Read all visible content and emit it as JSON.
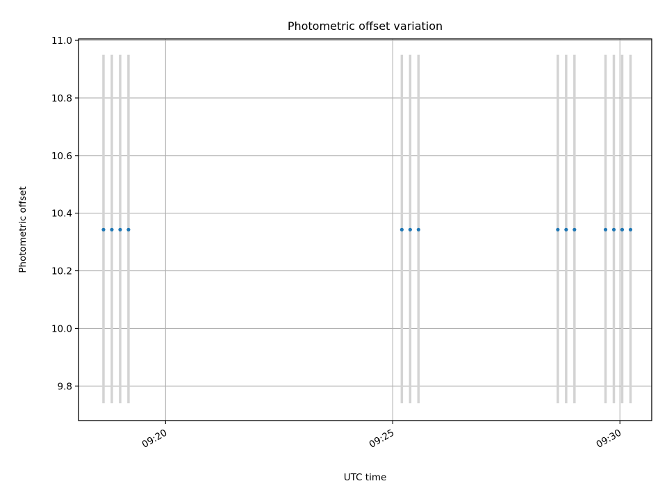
{
  "chart_data": {
    "type": "scatter",
    "title": "Photometric offset variation",
    "xlabel": "UTC time",
    "ylabel": "Photometric offset",
    "xlim": [
      "09:18:05",
      "09:30:42"
    ],
    "ylim": [
      9.68,
      11.005
    ],
    "x_ticks": [
      "09:20",
      "09:25",
      "09:30"
    ],
    "y_ticks": [
      "9.8",
      "10.0",
      "10.2",
      "10.4",
      "10.6",
      "10.8",
      "11.0"
    ],
    "grid": true,
    "series": [
      {
        "marker": "dot",
        "color": "#1f77b4",
        "points": [
          {
            "x": "09:18:38",
            "y": 10.343,
            "ylow": 9.74,
            "yhigh": 10.95
          },
          {
            "x": "09:18:49",
            "y": 10.343,
            "ylow": 9.74,
            "yhigh": 10.95
          },
          {
            "x": "09:19:00",
            "y": 10.343,
            "ylow": 9.74,
            "yhigh": 10.95
          },
          {
            "x": "09:19:11",
            "y": 10.343,
            "ylow": 9.74,
            "yhigh": 10.95
          },
          {
            "x": "09:25:12",
            "y": 10.343,
            "ylow": 9.74,
            "yhigh": 10.95
          },
          {
            "x": "09:25:23",
            "y": 10.343,
            "ylow": 9.74,
            "yhigh": 10.95
          },
          {
            "x": "09:25:34",
            "y": 10.343,
            "ylow": 9.74,
            "yhigh": 10.95
          },
          {
            "x": "09:28:38",
            "y": 10.343,
            "ylow": 9.74,
            "yhigh": 10.95
          },
          {
            "x": "09:28:49",
            "y": 10.343,
            "ylow": 9.74,
            "yhigh": 10.95
          },
          {
            "x": "09:29:00",
            "y": 10.343,
            "ylow": 9.74,
            "yhigh": 10.95
          },
          {
            "x": "09:29:41",
            "y": 10.343,
            "ylow": 9.74,
            "yhigh": 10.95
          },
          {
            "x": "09:29:52",
            "y": 10.343,
            "ylow": 9.74,
            "yhigh": 10.95
          },
          {
            "x": "09:30:03",
            "y": 10.343,
            "ylow": 9.74,
            "yhigh": 10.95
          },
          {
            "x": "09:30:14",
            "y": 10.343,
            "ylow": 9.74,
            "yhigh": 10.95
          }
        ]
      }
    ],
    "errorbar_color": "#d3d3d3",
    "grid_color": "#b0b0b0"
  }
}
